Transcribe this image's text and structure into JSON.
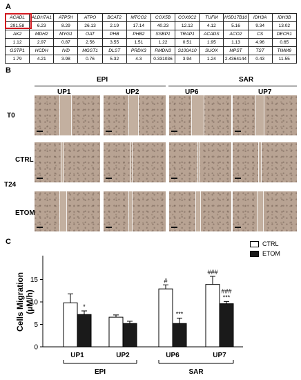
{
  "panels": {
    "a": "A",
    "b": "B",
    "c": "C"
  },
  "table": {
    "rows": [
      {
        "genes": [
          "ACADL",
          "ALDH7A1",
          "ATP5H",
          "ATPO",
          "BCAT2",
          "MTCO2",
          "COX5B",
          "COX6C2",
          "TUFM",
          "HSD17B10",
          "IDH3A",
          "IDH3B"
        ],
        "values": [
          "291.58",
          "6.23",
          "8.29",
          "26.13",
          "2.19",
          "17.14",
          "40.23",
          "12.12",
          "4.12",
          "5.16",
          "9.34",
          "13.02"
        ]
      },
      {
        "genes": [
          "AK2",
          "MDH2",
          "MYG1",
          "OAT",
          "PHB",
          "PHB2",
          "SSBP1",
          "TRAP1",
          "ACADS",
          "ACO2",
          "CS",
          "DECR1"
        ],
        "values": [
          "1.12",
          "2.97",
          "0.87",
          "2.56",
          "3.55",
          "1.51",
          "1.22",
          "0.51",
          "1.95",
          "1.13",
          "4.96",
          "0.65"
        ]
      },
      {
        "genes": [
          "GSTP1",
          "HCDH",
          "IVD",
          "MGST1",
          "DLST",
          "PRDX3",
          "RMDN3",
          "S100A10",
          "SUOX",
          "MPST",
          "TST",
          "TIMM9"
        ],
        "values": [
          "1.79",
          "4.21",
          "3.98",
          "0.76",
          "5.32",
          "4.3",
          "0.331036",
          "3.94",
          "1.24",
          "2.4364144",
          "0.43",
          "11.55"
        ]
      }
    ],
    "highlight_color": "#d0181f"
  },
  "microscopy": {
    "groups": [
      "EPI",
      "SAR"
    ],
    "samples": [
      "UP1",
      "UP2",
      "UP6",
      "UP7"
    ],
    "rows": [
      "T0",
      "CTRL",
      "ETOM"
    ],
    "time_label": "T24"
  },
  "chart_data": {
    "type": "bar",
    "ylabel": "Cells Migration\n(µM/h)",
    "ylim": [
      0,
      20
    ],
    "yticks": [
      0,
      5,
      10,
      15
    ],
    "categories": [
      "UP1",
      "UP2",
      "UP6",
      "UP7"
    ],
    "groups": [
      {
        "label": "EPI",
        "categories": [
          "UP1",
          "UP2"
        ]
      },
      {
        "label": "SAR",
        "categories": [
          "UP6",
          "UP7"
        ]
      }
    ],
    "series": [
      {
        "name": "CTRL",
        "color": "#ffffff",
        "values": [
          9.8,
          6.6,
          12.9,
          13.9
        ],
        "errors": [
          2.0,
          0.5,
          0.9,
          1.8
        ]
      },
      {
        "name": "ETOM",
        "color": "#1a1a1a",
        "values": [
          7.2,
          5.2,
          5.2,
          9.6
        ],
        "errors": [
          0.8,
          0.5,
          1.2,
          0.5
        ]
      }
    ],
    "annotations": [
      {
        "category": "UP1",
        "series": "ETOM",
        "text": "*"
      },
      {
        "category": "UP6",
        "series": "CTRL",
        "text": "#"
      },
      {
        "category": "UP6",
        "series": "ETOM",
        "text": "***"
      },
      {
        "category": "UP7",
        "series": "CTRL",
        "text": "###"
      },
      {
        "category": "UP7",
        "series": "ETOM",
        "text": "###\n***"
      }
    ],
    "legend": "top-right",
    "grid": false
  }
}
